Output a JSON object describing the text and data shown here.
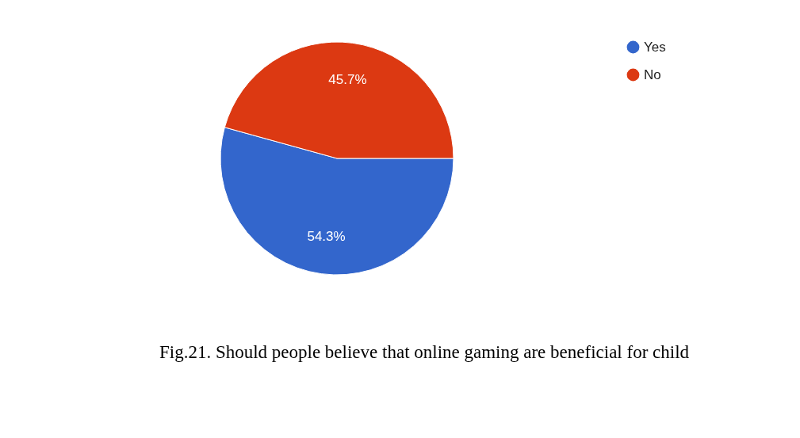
{
  "chart_data": {
    "type": "pie",
    "categories": [
      "Yes",
      "No"
    ],
    "values": [
      54.3,
      45.7
    ],
    "colors": [
      "#3366cc",
      "#dc3912"
    ],
    "value_labels": [
      "54.3%",
      "45.7%"
    ],
    "legend": "top right",
    "annotations": [
      "Fig.21. Should people believe that online gaming are beneficial for child"
    ]
  }
}
